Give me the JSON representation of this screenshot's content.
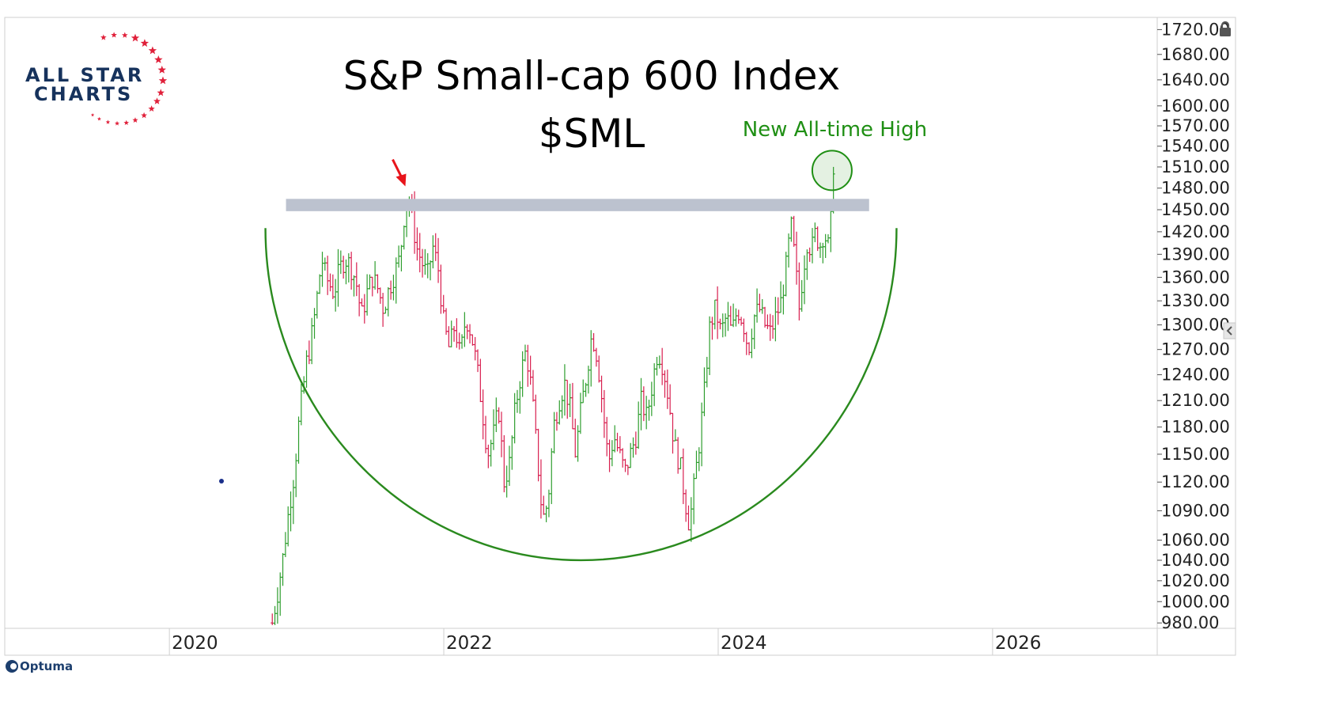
{
  "branding": {
    "logo_line1": "ALL STAR",
    "logo_line2": "CHARTS",
    "logo_text_color": "#16325c",
    "logo_star_color": "#e0203a",
    "platform": "Optuma",
    "lock_icon": "lock-icon"
  },
  "chart_data": {
    "type": "candlestick",
    "title": "S&P Small-cap 600 Index",
    "subtitle": "$SML",
    "xlabel": "",
    "ylabel": "",
    "x_ticks": [
      "2020",
      "2022",
      "2024",
      "2026"
    ],
    "y_ticks": [
      "1720.00",
      "1680.00",
      "1640.00",
      "1600.00",
      "1570.00",
      "1540.00",
      "1510.00",
      "1480.00",
      "1450.00",
      "1420.00",
      "1390.00",
      "1360.00",
      "1330.00",
      "1300.00",
      "1270.00",
      "1240.00",
      "1210.00",
      "1180.00",
      "1150.00",
      "1120.00",
      "1090.00",
      "1060.00",
      "1040.00",
      "1020.00",
      "1000.00",
      "980.00"
    ],
    "ylim": [
      975,
      1740
    ],
    "xlim": [
      2018.8,
      2027.2
    ],
    "scale": "log",
    "up_color": "#2e9e2e",
    "down_color": "#d81f4f",
    "resistance_band": {
      "low": 1448,
      "high": 1465,
      "x_start": 2020.85,
      "x_end": 2025.1,
      "color": "#bcc2cf"
    },
    "cup_arc_color": "#2a8a1e",
    "price_path": [
      [
        2020.75,
        980
      ],
      [
        2020.79,
        1010
      ],
      [
        2020.83,
        1045
      ],
      [
        2020.87,
        1090
      ],
      [
        2020.91,
        1130
      ],
      [
        2020.95,
        1195
      ],
      [
        2020.98,
        1230
      ],
      [
        2021.0,
        1255
      ],
      [
        2021.02,
        1270
      ],
      [
        2021.05,
        1300
      ],
      [
        2021.08,
        1340
      ],
      [
        2021.11,
        1385
      ],
      [
        2021.14,
        1360
      ],
      [
        2021.17,
        1350
      ],
      [
        2021.2,
        1340
      ],
      [
        2021.24,
        1370
      ],
      [
        2021.28,
        1385
      ],
      [
        2021.32,
        1375
      ],
      [
        2021.36,
        1355
      ],
      [
        2021.4,
        1310
      ],
      [
        2021.44,
        1340
      ],
      [
        2021.48,
        1360
      ],
      [
        2021.52,
        1345
      ],
      [
        2021.56,
        1320
      ],
      [
        2021.6,
        1345
      ],
      [
        2021.64,
        1365
      ],
      [
        2021.68,
        1385
      ],
      [
        2021.71,
        1440
      ],
      [
        2021.74,
        1470
      ],
      [
        2021.77,
        1440
      ],
      [
        2021.8,
        1400
      ],
      [
        2021.84,
        1380
      ],
      [
        2021.88,
        1360
      ],
      [
        2021.92,
        1400
      ],
      [
        2021.96,
        1370
      ],
      [
        2022.0,
        1300
      ],
      [
        2022.04,
        1270
      ],
      [
        2022.08,
        1300
      ],
      [
        2022.12,
        1260
      ],
      [
        2022.16,
        1310
      ],
      [
        2022.2,
        1290
      ],
      [
        2022.24,
        1250
      ],
      [
        2022.28,
        1200
      ],
      [
        2022.32,
        1150
      ],
      [
        2022.36,
        1170
      ],
      [
        2022.4,
        1200
      ],
      [
        2022.44,
        1120
      ],
      [
        2022.48,
        1140
      ],
      [
        2022.52,
        1200
      ],
      [
        2022.56,
        1240
      ],
      [
        2022.6,
        1270
      ],
      [
        2022.64,
        1220
      ],
      [
        2022.68,
        1150
      ],
      [
        2022.72,
        1080
      ],
      [
        2022.76,
        1100
      ],
      [
        2022.8,
        1180
      ],
      [
        2022.84,
        1210
      ],
      [
        2022.88,
        1230
      ],
      [
        2022.92,
        1200
      ],
      [
        2022.96,
        1150
      ],
      [
        2023.0,
        1200
      ],
      [
        2023.04,
        1240
      ],
      [
        2023.08,
        1290
      ],
      [
        2023.12,
        1260
      ],
      [
        2023.16,
        1200
      ],
      [
        2023.2,
        1140
      ],
      [
        2023.24,
        1170
      ],
      [
        2023.28,
        1150
      ],
      [
        2023.32,
        1130
      ],
      [
        2023.36,
        1150
      ],
      [
        2023.4,
        1170
      ],
      [
        2023.44,
        1210
      ],
      [
        2023.48,
        1190
      ],
      [
        2023.52,
        1230
      ],
      [
        2023.56,
        1270
      ],
      [
        2023.6,
        1250
      ],
      [
        2023.64,
        1210
      ],
      [
        2023.68,
        1160
      ],
      [
        2023.72,
        1140
      ],
      [
        2023.76,
        1100
      ],
      [
        2023.79,
        1075
      ],
      [
        2023.82,
        1110
      ],
      [
        2023.86,
        1160
      ],
      [
        2023.9,
        1220
      ],
      [
        2023.94,
        1300
      ],
      [
        2023.98,
        1320
      ],
      [
        2024.02,
        1290
      ],
      [
        2024.06,
        1310
      ],
      [
        2024.1,
        1290
      ],
      [
        2024.14,
        1320
      ],
      [
        2024.18,
        1305
      ],
      [
        2024.22,
        1270
      ],
      [
        2024.26,
        1310
      ],
      [
        2024.3,
        1320
      ],
      [
        2024.34,
        1300
      ],
      [
        2024.38,
        1290
      ],
      [
        2024.42,
        1310
      ],
      [
        2024.46,
        1330
      ],
      [
        2024.5,
        1380
      ],
      [
        2024.53,
        1430
      ],
      [
        2024.56,
        1380
      ],
      [
        2024.59,
        1320
      ],
      [
        2024.62,
        1370
      ],
      [
        2024.65,
        1410
      ],
      [
        2024.68,
        1395
      ],
      [
        2024.71,
        1420
      ],
      [
        2024.74,
        1400
      ],
      [
        2024.77,
        1420
      ],
      [
        2024.81,
        1395
      ],
      [
        2024.84,
        1500
      ]
    ],
    "annotations": [
      {
        "type": "text",
        "text": "New All-time High",
        "x": 2024.85,
        "y": 1555,
        "color": "#1f8f14"
      },
      {
        "type": "circle",
        "x": 2024.83,
        "y": 1505,
        "color": "#1f8f14"
      },
      {
        "type": "arrow",
        "x": 2021.72,
        "y": 1478,
        "color": "#e8141b"
      }
    ]
  }
}
